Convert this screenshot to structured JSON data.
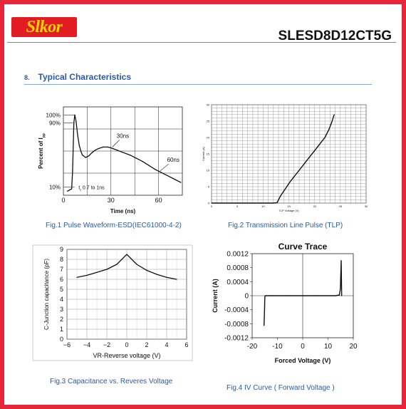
{
  "header": {
    "logo_text": "Slkor",
    "part_number": "SLESD8D12CT5G"
  },
  "section": {
    "number": "8.",
    "title": "Typical Characteristics"
  },
  "colors": {
    "border": "#e8263a",
    "logo_bg": "#e31b23",
    "logo_text": "#ffd200",
    "heading": "#2a5aa8",
    "rule": "#6a8bc8"
  },
  "chart_data": [
    {
      "type": "line",
      "caption": "Fig.1 Pulse Waveform-ESD(IEC61000-4-2)",
      "xlabel": "Time (ns)",
      "ylabel": "Percent of I",
      "ylabel_sub": "pp",
      "xlim": [
        0,
        75
      ],
      "ylim": [
        0,
        110
      ],
      "x_ticks": [
        0,
        30,
        60
      ],
      "y_tick_labels": [
        {
          "label": "100%",
          "y": 100
        },
        {
          "label": "90%",
          "y": 90
        },
        {
          "label": "10%",
          "y": 10
        }
      ],
      "annotations": [
        {
          "text": "30ns",
          "x": 30,
          "y": 60
        },
        {
          "text": "60ns",
          "x": 60,
          "y": 30
        },
        {
          "text": "t",
          "sub": "r",
          "rest": " 0.7 to 1ns",
          "x": 6,
          "y": 10
        }
      ],
      "x": [
        2.5,
        5.2,
        5.8,
        6.6,
        7.2,
        8,
        9,
        10,
        11,
        12,
        14,
        16,
        18,
        20,
        22,
        25,
        28,
        30,
        34,
        38,
        42,
        46,
        50,
        54,
        58,
        60,
        63,
        66,
        70,
        74
      ],
      "values": [
        5,
        8,
        30,
        90,
        100,
        92,
        75,
        62,
        55,
        50,
        47,
        49,
        53,
        56,
        58,
        60,
        60,
        59,
        56,
        53,
        50,
        46,
        42,
        37,
        32,
        30,
        27,
        24,
        20,
        16
      ]
    },
    {
      "type": "line",
      "caption": "Fig.2 Transmission Line Pulse (TLP)",
      "xlabel": "TLP Voltage  (V)",
      "ylabel": "Current  (A)",
      "xlim": [
        0,
        30
      ],
      "ylim": [
        0,
        30
      ],
      "x_ticks": [
        0,
        5,
        10,
        15,
        20,
        25,
        30
      ],
      "y_ticks": [
        0,
        5,
        10,
        15,
        20,
        25,
        30
      ],
      "x": [
        0,
        12,
        12.7,
        13,
        13.4,
        14,
        14.6,
        15.2,
        16,
        17,
        18,
        19,
        20,
        21,
        22,
        22.8,
        23.3,
        23.8
      ],
      "values": [
        0,
        0,
        0.1,
        1,
        2.2,
        3.6,
        5,
        6.4,
        8,
        10,
        12,
        14,
        16,
        18,
        20,
        22.5,
        24.5,
        27
      ]
    },
    {
      "type": "line",
      "caption": "Fig.3 Capacitance vs. Reveres Voltage",
      "xlabel": "VR-Reverse voltage (V)",
      "ylabel": "C-Junction capacitance (pF)",
      "xlim": [
        -6,
        6
      ],
      "ylim": [
        0,
        9
      ],
      "x_ticks": [
        -6,
        -4,
        -2,
        0,
        2,
        4,
        6
      ],
      "y_ticks": [
        0,
        1,
        2,
        3,
        4,
        5,
        6,
        7,
        8,
        9
      ],
      "x": [
        -5,
        -4,
        -3,
        -2,
        -1,
        0,
        1,
        2,
        3,
        4,
        5
      ],
      "values": [
        6.2,
        6.4,
        6.7,
        7.0,
        7.5,
        8.5,
        7.5,
        6.9,
        6.5,
        6.2,
        6.0
      ]
    },
    {
      "type": "line",
      "title": "Curve Trace",
      "caption": "Fig.4    IV Curve ( Forward Voltage )",
      "xlabel": "Forced Voltage (V)",
      "ylabel": "Current (A)",
      "xlim": [
        -20,
        20
      ],
      "ylim": [
        -0.0012,
        0.0012
      ],
      "x_ticks": [
        -20,
        -10,
        0,
        10,
        20
      ],
      "y_tick_labels": [
        {
          "label": "0.0012",
          "y": 0.0012
        },
        {
          "label": "0.0008",
          "y": 0.0008
        },
        {
          "label": "0.0004",
          "y": 0.0004
        },
        {
          "label": "0",
          "y": 0
        },
        {
          "label": "-0.0004",
          "y": -0.0004
        },
        {
          "label": "-0.0008",
          "y": -0.0008
        },
        {
          "label": "-0.0012",
          "y": -0.0012
        }
      ],
      "x": [
        -15.3,
        -15.1,
        -15.0,
        -14.9,
        -14.7,
        -13,
        -5,
        5,
        13,
        14.5,
        14.9,
        15.0,
        15.2,
        15.4
      ],
      "values": [
        -0.00085,
        -0.0004,
        -5e-05,
        -1e-05,
        0,
        0,
        0,
        0,
        0,
        2e-05,
        0.0002,
        0.0005,
        0.001,
        0
      ]
    }
  ]
}
